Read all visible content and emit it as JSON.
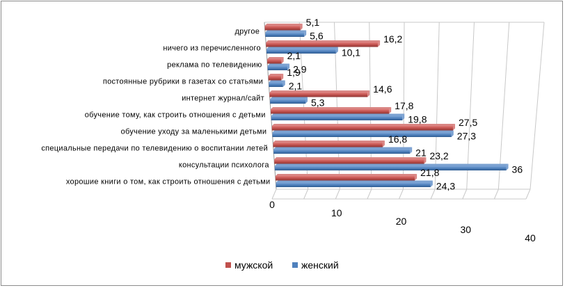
{
  "chart_data": {
    "type": "bar",
    "orientation": "horizontal",
    "categories": [
      "хорошие книги о том, как строить отношения с детьми",
      "консультации психолога",
      "специальные передачи по телевидению о воспитании летей",
      "обучение уходу за маленькими детьми",
      "обучение тому, как строить отношения с детьми",
      "интернет журнал/сайт",
      "постоянные рубрики в газетах со статьями",
      "реклама по телевидению",
      "ничего из перечисленного",
      "другое"
    ],
    "series": [
      {
        "name": "мужской",
        "color": "#c0504d",
        "values": [
          21.8,
          23.2,
          16.8,
          27.5,
          17.8,
          14.6,
          1.9,
          2.1,
          16.2,
          5.1
        ],
        "labels": [
          "21,8",
          "23,2",
          "16,8",
          "27,5",
          "17,8",
          "14,6",
          "1,9",
          "2,1",
          "16,2",
          "5,1"
        ]
      },
      {
        "name": "женский",
        "color": "#4f81bd",
        "values": [
          24.3,
          36,
          21,
          27.3,
          19.8,
          5.3,
          2.1,
          2.9,
          10.1,
          5.6
        ],
        "labels": [
          "24,3",
          "36",
          "21",
          "27,3",
          "19,8",
          "5,3",
          "2,1",
          "2,9",
          "10,1",
          "5,6"
        ]
      }
    ],
    "xlim": [
      0,
      40
    ],
    "x_ticks": [
      0,
      10,
      20,
      30,
      40
    ],
    "x_tick_labels": [
      "0",
      "10",
      "20",
      "30",
      "40"
    ],
    "grid": true,
    "legend_position": "bottom"
  }
}
